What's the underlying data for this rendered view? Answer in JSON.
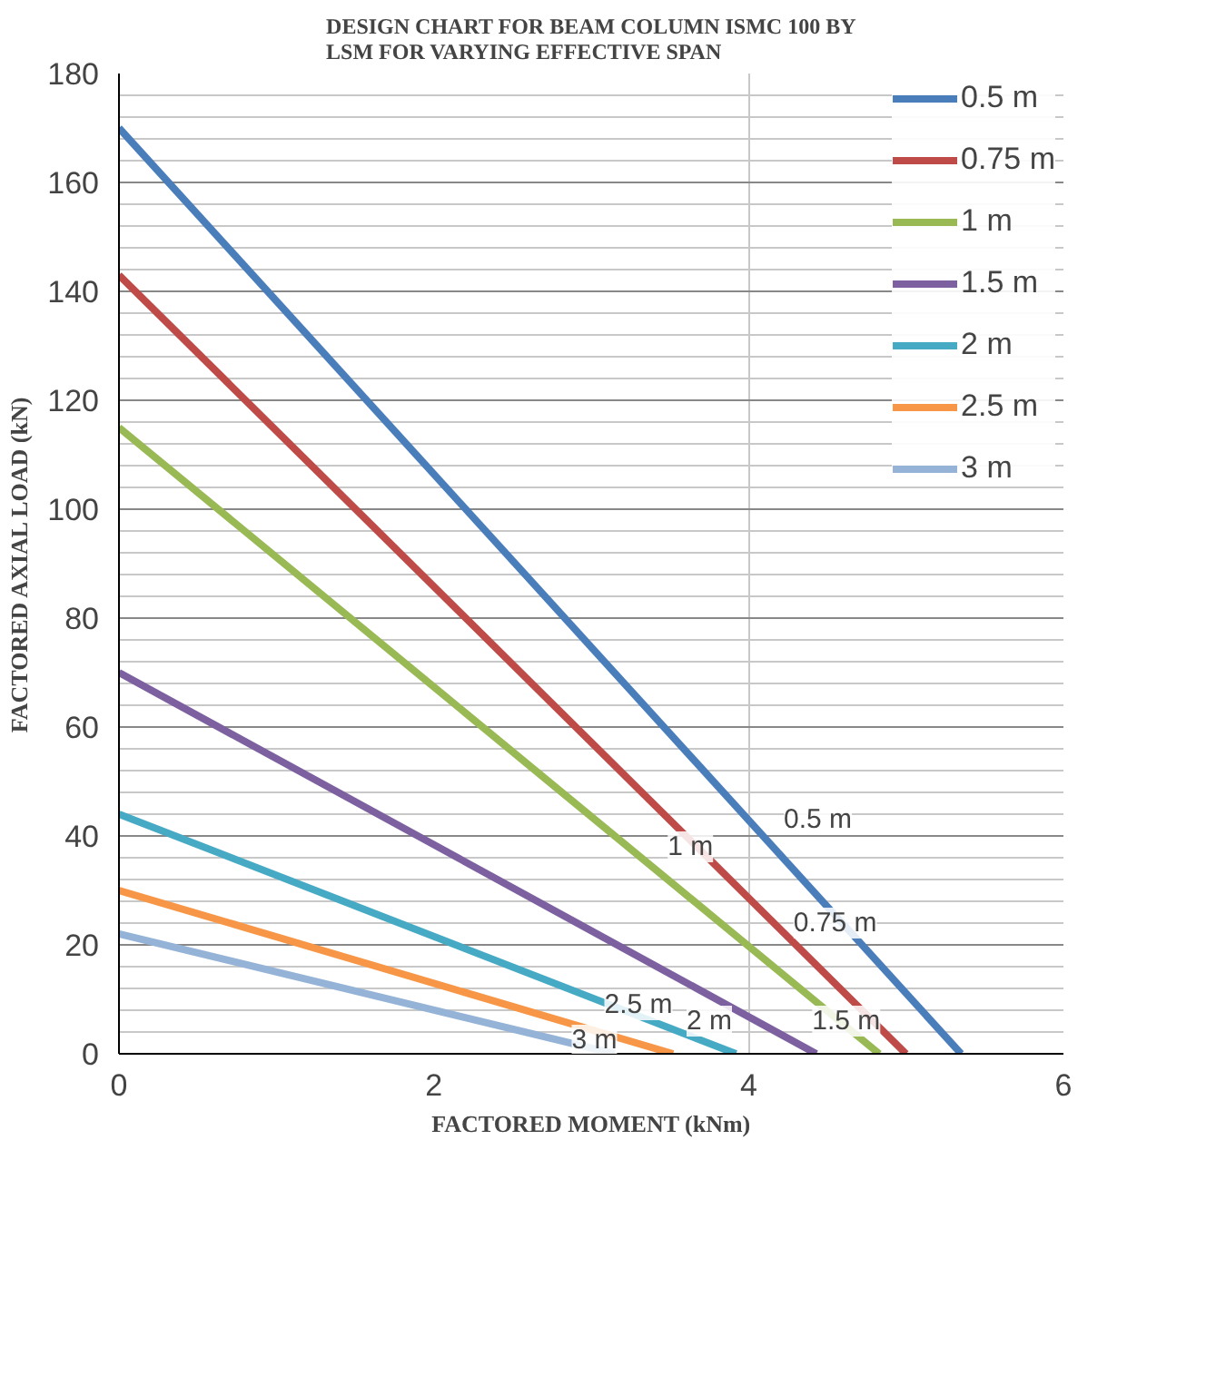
{
  "chart_data": {
    "type": "line",
    "title": "DESIGN CHART FOR BEAM COLUMN ISMC 100 BY LSM FOR VARYING EFFECTIVE SPAN",
    "xlabel": "FACTORED MOMENT (kNm)",
    "ylabel": "FACTORED AXIAL LOAD (kN)",
    "xlim": [
      0,
      6
    ],
    "ylim": [
      0,
      180
    ],
    "xticks": [
      0,
      2,
      4,
      6
    ],
    "yticks": [
      0,
      20,
      40,
      60,
      80,
      100,
      120,
      140,
      160,
      180
    ],
    "grid": true,
    "legend": "top right",
    "marker": "none",
    "line_style": "solid",
    "series": [
      {
        "name": "0.5 m",
        "color": "#4a7ebb",
        "x": [
          0,
          5.35
        ],
        "values": [
          170,
          0
        ]
      },
      {
        "name": "0.75 m",
        "color": "#be4b48",
        "x": [
          0,
          5.0
        ],
        "values": [
          143,
          0
        ]
      },
      {
        "name": "1 m",
        "color": "#98b954",
        "x": [
          0,
          4.83
        ],
        "values": [
          115,
          0
        ]
      },
      {
        "name": "1.5 m",
        "color": "#7d60a0",
        "x": [
          0,
          4.43
        ],
        "values": [
          70,
          0
        ]
      },
      {
        "name": "2 m",
        "color": "#46aac5",
        "x": [
          0,
          3.92
        ],
        "values": [
          44,
          0
        ]
      },
      {
        "name": "2.5 m",
        "color": "#f79646",
        "x": [
          0,
          3.52
        ],
        "values": [
          30,
          0
        ]
      },
      {
        "name": "3 m",
        "color": "#95b3d7",
        "x": [
          0,
          3.15
        ],
        "values": [
          22,
          0
        ]
      }
    ],
    "annotations": [
      {
        "text": "0.5 m",
        "x": 4.44,
        "y": 43
      },
      {
        "text": "0.75 m",
        "x": 4.55,
        "y": 24
      },
      {
        "text": "1 m",
        "x": 3.63,
        "y": 38
      },
      {
        "text": "2 m",
        "x": 3.75,
        "y": 6
      },
      {
        "text": "1.5 m",
        "x": 4.62,
        "y": 6
      },
      {
        "text": "2.5 m",
        "x": 3.3,
        "y": 9
      },
      {
        "text": "3 m",
        "x": 3.02,
        "y": 2.5
      }
    ]
  }
}
